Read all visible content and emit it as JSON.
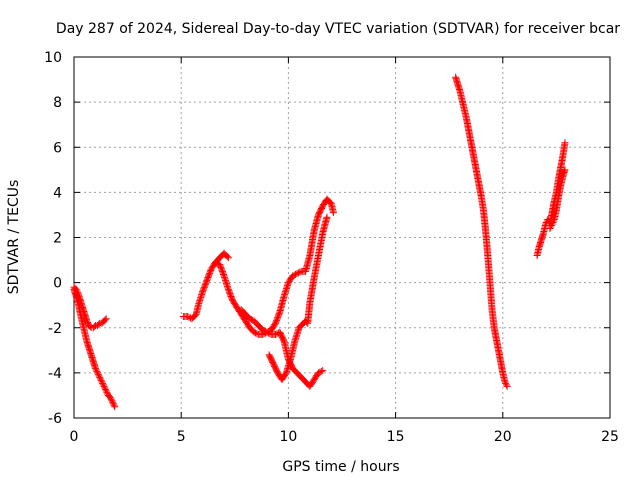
{
  "chart_data": {
    "type": "scatter",
    "title": "Day 287 of 2024, Sidereal Day-to-day VTEC variation (SDTVAR) for receiver bcar",
    "xlabel": "GPS time / hours",
    "ylabel": "SDTVAR / TECUs",
    "xlim": [
      0,
      25
    ],
    "ylim": [
      -6,
      10
    ],
    "xticks": [
      0,
      5,
      10,
      15,
      20,
      25
    ],
    "yticks": [
      -6,
      -4,
      -2,
      0,
      2,
      4,
      6,
      8,
      10
    ],
    "grid": true,
    "legend": "none",
    "marker": "plus",
    "color": "#ff0000",
    "series": [
      {
        "x": [
          0.0,
          0.1,
          0.2,
          0.3,
          0.4,
          0.5,
          0.6,
          0.7,
          0.8,
          0.9,
          1.0,
          1.1,
          1.2,
          1.3,
          1.4,
          1.5,
          1.6,
          1.7,
          1.8,
          1.9
        ],
        "y": [
          -0.3,
          -0.6,
          -0.9,
          -1.4,
          -1.8,
          -2.2,
          -2.6,
          -2.9,
          -3.2,
          -3.5,
          -3.8,
          -4.0,
          -4.2,
          -4.4,
          -4.6,
          -4.8,
          -5.0,
          -5.1,
          -5.3,
          -5.5
        ]
      },
      {
        "x": [
          0.0,
          0.1,
          0.2,
          0.3,
          0.4,
          0.5,
          0.6,
          0.7,
          0.8,
          0.9,
          1.0,
          1.1,
          1.2,
          1.3,
          1.4,
          1.5
        ],
        "y": [
          -0.2,
          -0.3,
          -0.5,
          -0.8,
          -1.1,
          -1.4,
          -1.7,
          -1.9,
          -2.0,
          -2.0,
          -1.9,
          -1.9,
          -1.8,
          -1.8,
          -1.7,
          -1.6
        ]
      },
      {
        "x": [
          5.1,
          5.3,
          5.5,
          5.7,
          5.8,
          6.0,
          6.2,
          6.4,
          6.6,
          6.8,
          7.0,
          7.1,
          7.2
        ],
        "y": [
          -1.5,
          -1.5,
          -1.6,
          -1.4,
          -1.0,
          -0.4,
          0.1,
          0.6,
          0.9,
          1.1,
          1.3,
          1.2,
          1.1
        ]
      },
      {
        "x": [
          6.6,
          6.8,
          7.0,
          7.2,
          7.4,
          7.6,
          7.8,
          8.0,
          8.2,
          8.4,
          8.6,
          8.8,
          9.0,
          9.2,
          9.4,
          9.6,
          9.8,
          10.0,
          10.2,
          10.4,
          10.6,
          10.8,
          11.0,
          11.2,
          11.4,
          11.6,
          11.8,
          12.0,
          12.1
        ],
        "y": [
          0.9,
          0.8,
          0.3,
          -0.3,
          -0.8,
          -1.1,
          -1.4,
          -1.7,
          -2.0,
          -2.2,
          -2.3,
          -2.3,
          -2.2,
          -2.1,
          -1.8,
          -1.3,
          -0.6,
          0.0,
          0.3,
          0.4,
          0.5,
          0.5,
          1.2,
          2.3,
          3.0,
          3.4,
          3.7,
          3.5,
          3.1
        ]
      },
      {
        "x": [
          7.8,
          8.0,
          8.2,
          8.4,
          8.6,
          8.8,
          9.0,
          9.2,
          9.4,
          9.6,
          9.8,
          10.0,
          10.2,
          10.4,
          10.6,
          10.8,
          11.0,
          11.2,
          11.4,
          11.6
        ],
        "y": [
          -1.2,
          -1.4,
          -1.6,
          -1.7,
          -1.9,
          -2.1,
          -2.2,
          -2.3,
          -2.3,
          -2.2,
          -2.6,
          -3.4,
          -3.8,
          -4.0,
          -4.2,
          -4.4,
          -4.6,
          -4.3,
          -4.0,
          -3.9
        ]
      },
      {
        "x": [
          9.1,
          9.3,
          9.5,
          9.7,
          9.9,
          10.1,
          10.3,
          10.5,
          10.7,
          10.8,
          10.9,
          11.0,
          11.2,
          11.4,
          11.6,
          11.8
        ],
        "y": [
          -3.2,
          -3.6,
          -4.0,
          -4.3,
          -4.0,
          -3.4,
          -2.6,
          -2.0,
          -1.8,
          -1.7,
          -1.8,
          -0.9,
          0.2,
          1.2,
          2.2,
          2.9
        ]
      },
      {
        "x": [
          17.8,
          17.9,
          18.0,
          18.1,
          18.2,
          18.3,
          18.4,
          18.5,
          18.6,
          18.7,
          18.8,
          18.9,
          19.0,
          19.1,
          19.2,
          19.3,
          19.4,
          19.45,
          19.5,
          19.55,
          19.6,
          19.7,
          19.8,
          19.9,
          20.0,
          20.1,
          20.2
        ],
        "y": [
          9.1,
          8.8,
          8.5,
          8.1,
          7.7,
          7.3,
          6.8,
          6.3,
          5.8,
          5.3,
          4.8,
          4.3,
          3.8,
          3.2,
          2.3,
          1.2,
          0.0,
          -0.6,
          -1.2,
          -1.6,
          -2.0,
          -2.5,
          -3.0,
          -3.5,
          -4.0,
          -4.4,
          -4.6
        ]
      },
      {
        "x": [
          21.6,
          21.7,
          21.8,
          21.9,
          22.0,
          22.1,
          22.2,
          22.3,
          22.4,
          22.5,
          22.6,
          22.7,
          22.8,
          22.9
        ],
        "y": [
          1.2,
          1.6,
          1.9,
          2.2,
          2.6,
          2.8,
          2.6,
          3.1,
          3.6,
          4.0,
          4.6,
          5.1,
          5.6,
          6.2
        ]
      },
      {
        "x": [
          22.2,
          22.3,
          22.4,
          22.5,
          22.6,
          22.7,
          22.8,
          22.9
        ],
        "y": [
          2.4,
          2.6,
          2.8,
          3.2,
          3.8,
          4.3,
          4.7,
          5.0
        ]
      }
    ]
  }
}
